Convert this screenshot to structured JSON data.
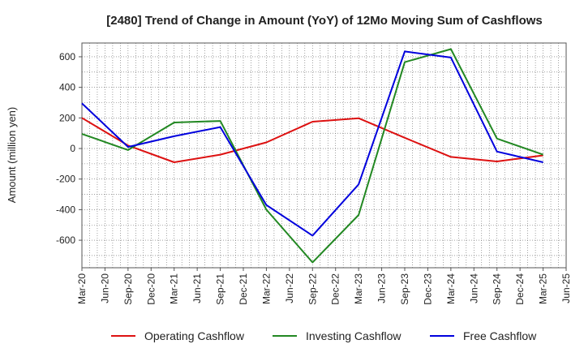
{
  "chart_data": {
    "type": "line",
    "title": "[2480]  Trend of Change in Amount (YoY) of 12Mo Moving Sum of Cashflows",
    "xlabel": "",
    "ylabel": "Amount (million yen)",
    "ylim": [
      -780,
      690
    ],
    "yticks": [
      600,
      400,
      200,
      0,
      -200,
      -400,
      -600
    ],
    "ytick_labels": [
      "600",
      "400",
      "200",
      "0",
      "-200",
      "-400",
      "-600"
    ],
    "xtick_labels": [
      "Mar-20",
      "Jun-20",
      "Sep-20",
      "Dec-20",
      "Mar-21",
      "Jun-21",
      "Sep-21",
      "Dec-21",
      "Mar-22",
      "Jun-22",
      "Sep-22",
      "Dec-22",
      "Mar-23",
      "Jun-23",
      "Sep-23",
      "Dec-23",
      "Mar-24",
      "Jun-24",
      "Sep-24",
      "Dec-24",
      "Mar-25",
      "Jun-25"
    ],
    "grid": true,
    "legend_position": "bottom",
    "series": [
      {
        "name": "Operating Cashflow",
        "color": "#dd1111",
        "x": [
          0,
          2,
          4,
          6,
          8,
          10,
          12,
          14,
          16,
          18,
          20
        ],
        "values": [
          200,
          20,
          -90,
          -40,
          40,
          175,
          198,
          70,
          -55,
          -85,
          -45
        ]
      },
      {
        "name": "Investing Cashflow",
        "color": "#228822",
        "x": [
          0,
          2,
          4,
          6,
          8,
          10,
          12,
          14,
          16,
          18,
          20
        ],
        "values": [
          95,
          -10,
          170,
          180,
          -400,
          -745,
          -435,
          565,
          650,
          65,
          -40
        ]
      },
      {
        "name": "Free Cashflow",
        "color": "#0000dd",
        "x": [
          0,
          2,
          4,
          6,
          8,
          10,
          12,
          14,
          16,
          18,
          20
        ],
        "values": [
          295,
          10,
          80,
          140,
          -370,
          -570,
          -235,
          635,
          595,
          -20,
          -90
        ]
      }
    ]
  }
}
